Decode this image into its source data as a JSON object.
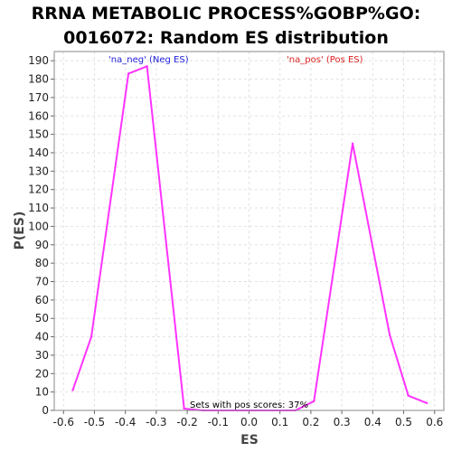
{
  "chart_data": {
    "type": "line",
    "title_line1": "RRNA METABOLIC PROCESS%GOBP%GO:",
    "title_line2": "0016072: Random ES distribution",
    "xlabel": "ES",
    "ylabel": "P(ES)",
    "xlim": [
      -0.63,
      0.63
    ],
    "ylim": [
      0,
      195
    ],
    "x_ticks": [
      "-0.6",
      "-0.5",
      "-0.4",
      "-0.3",
      "-0.2",
      "-0.1",
      "0.0",
      "0.1",
      "0.2",
      "0.3",
      "0.4",
      "0.5",
      "0.6"
    ],
    "y_ticks": [
      "0",
      "10",
      "20",
      "30",
      "40",
      "50",
      "60",
      "70",
      "80",
      "90",
      "100",
      "110",
      "120",
      "130",
      "140",
      "150",
      "160",
      "170",
      "180",
      "190"
    ],
    "grid": true,
    "line_color": "#ff33ff",
    "series": [
      {
        "values": [
          {
            "x": -0.57,
            "y": 11
          },
          {
            "x": -0.51,
            "y": 40
          },
          {
            "x": -0.39,
            "y": 183
          },
          {
            "x": -0.33,
            "y": 187
          },
          {
            "x": -0.21,
            "y": 1
          },
          {
            "x": -0.15,
            "y": 0
          },
          {
            "x": 0.15,
            "y": 0
          },
          {
            "x": 0.21,
            "y": 5
          },
          {
            "x": 0.335,
            "y": 145
          },
          {
            "x": 0.455,
            "y": 41
          },
          {
            "x": 0.515,
            "y": 8
          },
          {
            "x": 0.575,
            "y": 4
          }
        ]
      }
    ],
    "annotations": [
      {
        "text": "'na_neg' (Neg ES)",
        "color": "#2222dd",
        "x": -0.325,
        "y": 189
      },
      {
        "text": "'na_pos' (Pos ES)",
        "color": "#dd2222",
        "x": 0.245,
        "y": 189
      },
      {
        "text": "Sets with pos scores: 37%",
        "color": "#000000",
        "x": 0.0,
        "y": 1.5
      }
    ]
  }
}
